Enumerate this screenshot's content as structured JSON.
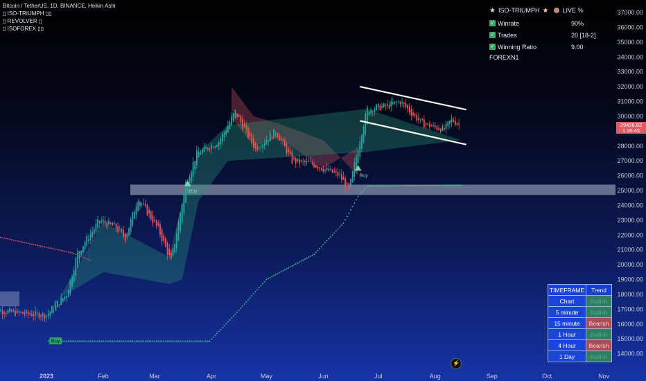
{
  "legend": {
    "symbol_line": "Bitcoin / TetherUS, 1D, BINANCE, Heikin Ashi",
    "indicator_1": "▯ ISO-TRIUMPH ▯▯",
    "indicator_2": "▯ REVOLVER ▯",
    "indicator_3": "▯ ISOFOREX ▯▯"
  },
  "stats_panel": {
    "title": "ISO-TRIUMPH",
    "live_label": "LIVE %",
    "rows": [
      {
        "label": "Winrate",
        "value": "90%"
      },
      {
        "label": "Trades",
        "value": "20 [18-2]"
      },
      {
        "label": "Winning Ratio",
        "value": "9.00"
      }
    ],
    "code": "FOREXN1",
    "check_glyph": "✓"
  },
  "timeframe_table": {
    "headers": [
      "TIMEFRAME",
      "Trend"
    ],
    "rows": [
      {
        "tf": "Chart",
        "trend": "Bullish",
        "state": "bull"
      },
      {
        "tf": "5 minute",
        "trend": "Bullish",
        "state": "bull"
      },
      {
        "tf": "15 minute",
        "trend": "Bearish",
        "state": "bear"
      },
      {
        "tf": "1 Hour",
        "trend": "Bullish",
        "state": "bull"
      },
      {
        "tf": "4 Hour",
        "trend": "Bearish",
        "state": "bear"
      },
      {
        "tf": "1 Day",
        "trend": "Bullish",
        "state": "bull"
      }
    ]
  },
  "price_tag": {
    "price": "29428.82",
    "sub": "1 30:45"
  },
  "icons": {
    "bolt": "⚡",
    "star": "★"
  },
  "colors": {
    "bull": "#26a69a",
    "bear": "#ef5350",
    "dots": "#3ed598",
    "buy_bg": "#2ea36e",
    "zone": "#c3cbdc",
    "channel": "#f3f3e4"
  },
  "chart_data": {
    "type": "candlestick",
    "y_ticks": [
      37000,
      36000,
      35000,
      34000,
      33000,
      32000,
      31000,
      30000,
      29000,
      28000,
      27000,
      26000,
      25000,
      24000,
      23000,
      22000,
      21000,
      20000,
      19000,
      18000,
      17000,
      16000,
      15000,
      14000
    ],
    "ylim": [
      13500,
      37500
    ],
    "x_ticks": [
      {
        "label": "2023",
        "date": "2023-01-01",
        "bold": true
      },
      {
        "label": "Feb",
        "date": "2023-02-01"
      },
      {
        "label": "Mar",
        "date": "2023-03-01"
      },
      {
        "label": "Apr",
        "date": "2023-04-01"
      },
      {
        "label": "May",
        "date": "2023-05-01"
      },
      {
        "label": "Jun",
        "date": "2023-06-01"
      },
      {
        "label": "Jul",
        "date": "2023-07-01"
      },
      {
        "label": "Aug",
        "date": "2023-08-01"
      },
      {
        "label": "Sep",
        "date": "2023-09-01"
      },
      {
        "label": "Oct",
        "date": "2023-10-01"
      },
      {
        "label": "Nov",
        "date": "2023-11-01"
      }
    ],
    "price_path": [
      [
        "2022-12-01",
        17000
      ],
      [
        "2022-12-20",
        16700
      ],
      [
        "2023-01-01",
        16600
      ],
      [
        "2023-01-12",
        18000
      ],
      [
        "2023-01-18",
        20800
      ],
      [
        "2023-01-30",
        23000
      ],
      [
        "2023-02-08",
        22500
      ],
      [
        "2023-02-13",
        21800
      ],
      [
        "2023-02-20",
        24500
      ],
      [
        "2023-03-03",
        22400
      ],
      [
        "2023-03-10",
        20200
      ],
      [
        "2023-03-18",
        25500
      ],
      [
        "2023-03-24",
        27500
      ],
      [
        "2023-04-05",
        28300
      ],
      [
        "2023-04-14",
        30300
      ],
      [
        "2023-04-25",
        27800
      ],
      [
        "2023-05-06",
        29000
      ],
      [
        "2023-05-15",
        27000
      ],
      [
        "2023-05-26",
        26800
      ],
      [
        "2023-06-10",
        26000
      ],
      [
        "2023-06-15",
        25000
      ],
      [
        "2023-06-21",
        28500
      ],
      [
        "2023-06-25",
        30500
      ],
      [
        "2023-07-06",
        30700
      ],
      [
        "2023-07-13",
        31000
      ],
      [
        "2023-07-25",
        29500
      ],
      [
        "2023-08-06",
        29100
      ],
      [
        "2023-08-10",
        29800
      ],
      [
        "2023-08-14",
        29428.82
      ]
    ],
    "psar_dots": [
      [
        "2022-12-01",
        22000
      ],
      [
        "2023-01-15",
        20800
      ],
      [
        "2023-01-25",
        20300
      ]
    ],
    "trail_stop": [
      [
        "2023-01-02",
        14850
      ],
      [
        "2023-03-31",
        14850
      ],
      [
        "2023-04-15",
        16800
      ],
      [
        "2023-05-01",
        19000
      ],
      [
        "2023-05-27",
        20700
      ],
      [
        "2023-06-12",
        22800
      ],
      [
        "2023-06-20",
        24600
      ],
      [
        "2023-06-25",
        25300
      ],
      [
        "2023-08-15",
        25350
      ]
    ],
    "channel": {
      "upper": [
        [
          "2023-06-21",
          32000
        ],
        [
          "2023-08-18",
          30450
        ]
      ],
      "lower": [
        [
          "2023-06-21",
          29700
        ],
        [
          "2023-08-18",
          28100
        ]
      ]
    },
    "support_zone": [
      24700,
      25400
    ],
    "supertrend_bear": [
      [
        "2023-04-12",
        32000
      ],
      [
        "2023-04-24",
        30000
      ],
      [
        "2023-05-08",
        29500
      ],
      [
        "2023-06-01",
        28400
      ],
      [
        "2023-06-20",
        26000
      ]
    ],
    "supertrend_bull": [
      [
        "2023-01-05",
        17500
      ],
      [
        "2023-02-01",
        19500
      ],
      [
        "2023-03-09",
        18700
      ],
      [
        "2023-03-16",
        19000
      ],
      [
        "2023-03-25",
        24300
      ],
      [
        "2023-04-10",
        27000
      ],
      [
        "2023-06-25",
        27600
      ],
      [
        "2023-08-15",
        28400
      ]
    ],
    "signals": [
      {
        "label": "Buy",
        "date": "2023-01-06",
        "price": 15050,
        "kind": "label"
      },
      {
        "label": "Buy",
        "date": "2023-03-19",
        "price": 25150,
        "kind": "triangle"
      },
      {
        "label": "Buy",
        "date": "2023-06-20",
        "price": 26200,
        "kind": "triangle"
      }
    ]
  }
}
